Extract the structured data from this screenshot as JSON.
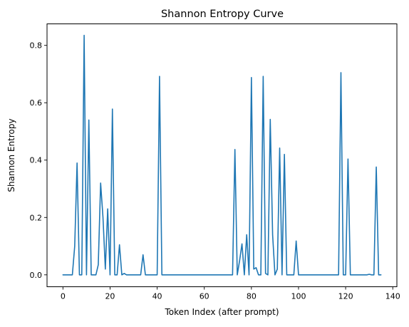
{
  "chart_data": {
    "type": "line",
    "title": "Shannon Entropy Curve",
    "xlabel": "Token Index (after prompt)",
    "ylabel": "Shannon Entropy",
    "xlim": [
      -6.75,
      141.75
    ],
    "ylim": [
      -0.0415,
      0.875
    ],
    "xticks": [
      0,
      20,
      40,
      60,
      80,
      100,
      120,
      140
    ],
    "yticks": [
      0.0,
      0.2,
      0.4,
      0.6,
      0.8
    ],
    "xtick_labels": [
      "0",
      "20",
      "40",
      "60",
      "80",
      "100",
      "120",
      "140"
    ],
    "ytick_labels": [
      "0.0",
      "0.2",
      "0.4",
      "0.6",
      "0.8"
    ],
    "grid": false,
    "line_color": "#1f77b4",
    "series": [
      {
        "x": [
          0,
          1,
          2,
          3,
          4,
          5,
          6,
          7,
          8,
          9,
          10,
          11,
          12,
          13,
          14,
          15,
          16,
          17,
          18,
          19,
          20,
          21,
          22,
          23,
          24,
          25,
          26,
          27,
          28,
          29,
          30,
          31,
          32,
          33,
          34,
          35,
          36,
          37,
          38,
          39,
          40,
          41,
          42,
          43,
          44,
          45,
          46,
          47,
          48,
          49,
          50,
          51,
          52,
          53,
          54,
          55,
          56,
          57,
          58,
          59,
          60,
          61,
          62,
          63,
          64,
          65,
          66,
          67,
          68,
          69,
          70,
          71,
          72,
          73,
          74,
          75,
          76,
          77,
          78,
          79,
          80,
          81,
          82,
          83,
          84,
          85,
          86,
          87,
          88,
          89,
          90,
          91,
          92,
          93,
          94,
          95,
          96,
          97,
          98,
          99,
          100,
          101,
          102,
          103,
          104,
          105,
          106,
          107,
          108,
          109,
          110,
          111,
          112,
          113,
          114,
          115,
          116,
          117,
          118,
          119,
          120,
          121,
          122,
          123,
          124,
          125,
          126,
          127,
          128,
          129,
          130,
          131,
          132,
          133,
          134,
          135
        ],
        "y": [
          0,
          0,
          0,
          0,
          0,
          0.1,
          0.39,
          0,
          0,
          0.835,
          0,
          0.54,
          0,
          0,
          0,
          0.035,
          0.32,
          0.2,
          0.02,
          0.23,
          0,
          0.578,
          0,
          0,
          0.105,
          0,
          0.005,
          0,
          0,
          0,
          0,
          0,
          0,
          0,
          0.07,
          0,
          0,
          0,
          0,
          0,
          0,
          0.692,
          0,
          0,
          0,
          0,
          0,
          0,
          0,
          0,
          0,
          0,
          0,
          0,
          0,
          0,
          0,
          0,
          0,
          0,
          0,
          0,
          0,
          0,
          0,
          0,
          0,
          0,
          0,
          0,
          0,
          0,
          0,
          0.437,
          0,
          0.05,
          0.108,
          0,
          0.14,
          0,
          0.688,
          0.02,
          0.025,
          0,
          0,
          0.692,
          0.005,
          0,
          0.542,
          0.14,
          0,
          0.02,
          0.442,
          0,
          0.42,
          0,
          0,
          0,
          0,
          0.118,
          0,
          0,
          0,
          0,
          0,
          0,
          0,
          0,
          0,
          0,
          0,
          0,
          0,
          0,
          0,
          0,
          0,
          0,
          0.705,
          0,
          0,
          0.404,
          0,
          0,
          0,
          0,
          0,
          0,
          0,
          0,
          0.002,
          0,
          0,
          0.376,
          0,
          0
        ]
      }
    ]
  }
}
